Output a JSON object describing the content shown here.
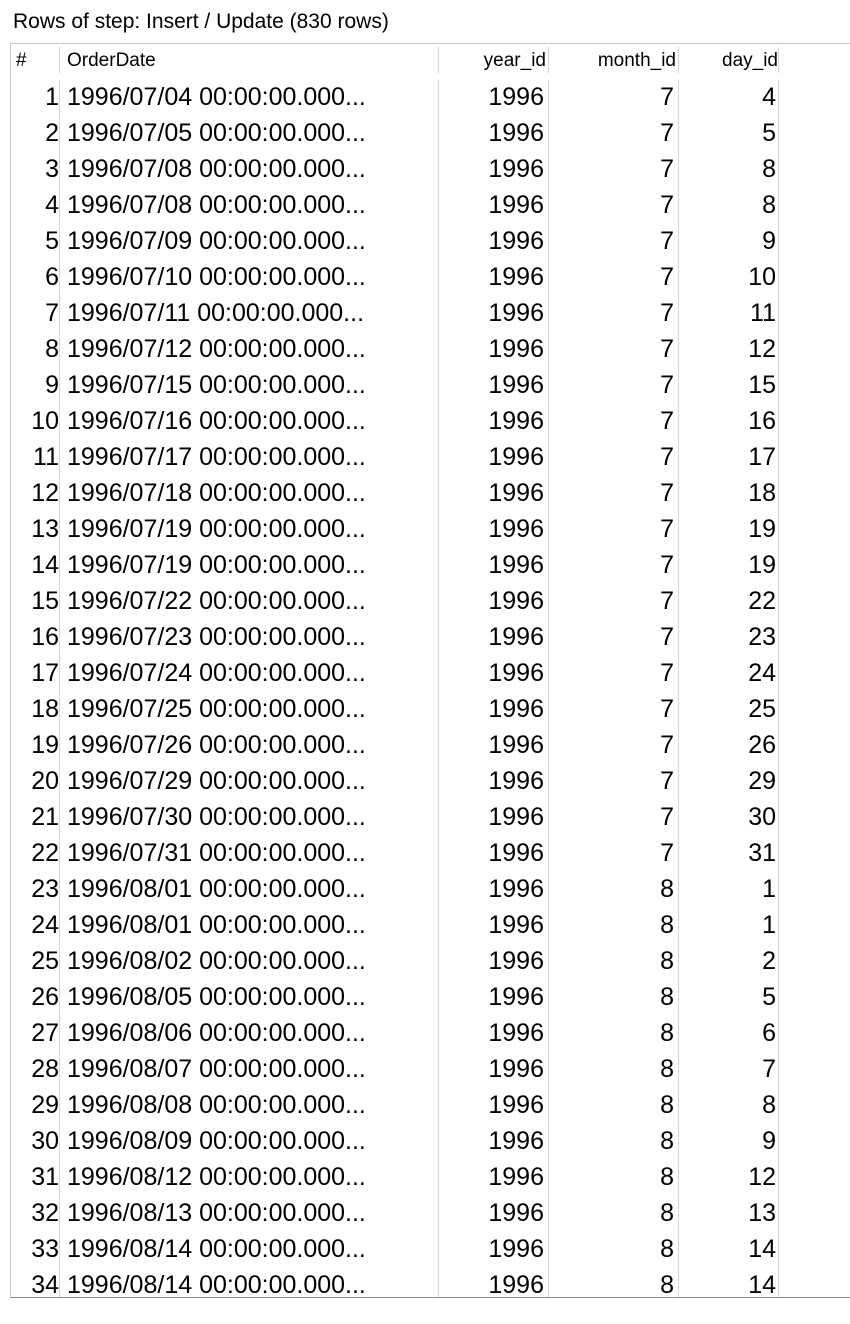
{
  "title": "Rows of step: Insert / Update (830 rows)",
  "columns": [
    "#",
    "OrderDate",
    "year_id",
    "month_id",
    "day_id"
  ],
  "rows": [
    {
      "n": "1",
      "date": "1996/07/04 00:00:00.000...",
      "year": "1996",
      "month": "7",
      "day": "4"
    },
    {
      "n": "2",
      "date": "1996/07/05 00:00:00.000...",
      "year": "1996",
      "month": "7",
      "day": "5"
    },
    {
      "n": "3",
      "date": "1996/07/08 00:00:00.000...",
      "year": "1996",
      "month": "7",
      "day": "8"
    },
    {
      "n": "4",
      "date": "1996/07/08 00:00:00.000...",
      "year": "1996",
      "month": "7",
      "day": "8"
    },
    {
      "n": "5",
      "date": "1996/07/09 00:00:00.000...",
      "year": "1996",
      "month": "7",
      "day": "9"
    },
    {
      "n": "6",
      "date": "1996/07/10 00:00:00.000...",
      "year": "1996",
      "month": "7",
      "day": "10"
    },
    {
      "n": "7",
      "date": "1996/07/11 00:00:00.000...",
      "year": "1996",
      "month": "7",
      "day": "11"
    },
    {
      "n": "8",
      "date": "1996/07/12 00:00:00.000...",
      "year": "1996",
      "month": "7",
      "day": "12"
    },
    {
      "n": "9",
      "date": "1996/07/15 00:00:00.000...",
      "year": "1996",
      "month": "7",
      "day": "15"
    },
    {
      "n": "10",
      "date": "1996/07/16 00:00:00.000...",
      "year": "1996",
      "month": "7",
      "day": "16"
    },
    {
      "n": "11",
      "date": "1996/07/17 00:00:00.000...",
      "year": "1996",
      "month": "7",
      "day": "17"
    },
    {
      "n": "12",
      "date": "1996/07/18 00:00:00.000...",
      "year": "1996",
      "month": "7",
      "day": "18"
    },
    {
      "n": "13",
      "date": "1996/07/19 00:00:00.000...",
      "year": "1996",
      "month": "7",
      "day": "19"
    },
    {
      "n": "14",
      "date": "1996/07/19 00:00:00.000...",
      "year": "1996",
      "month": "7",
      "day": "19"
    },
    {
      "n": "15",
      "date": "1996/07/22 00:00:00.000...",
      "year": "1996",
      "month": "7",
      "day": "22"
    },
    {
      "n": "16",
      "date": "1996/07/23 00:00:00.000...",
      "year": "1996",
      "month": "7",
      "day": "23"
    },
    {
      "n": "17",
      "date": "1996/07/24 00:00:00.000...",
      "year": "1996",
      "month": "7",
      "day": "24"
    },
    {
      "n": "18",
      "date": "1996/07/25 00:00:00.000...",
      "year": "1996",
      "month": "7",
      "day": "25"
    },
    {
      "n": "19",
      "date": "1996/07/26 00:00:00.000...",
      "year": "1996",
      "month": "7",
      "day": "26"
    },
    {
      "n": "20",
      "date": "1996/07/29 00:00:00.000...",
      "year": "1996",
      "month": "7",
      "day": "29"
    },
    {
      "n": "21",
      "date": "1996/07/30 00:00:00.000...",
      "year": "1996",
      "month": "7",
      "day": "30"
    },
    {
      "n": "22",
      "date": "1996/07/31 00:00:00.000...",
      "year": "1996",
      "month": "7",
      "day": "31"
    },
    {
      "n": "23",
      "date": "1996/08/01 00:00:00.000...",
      "year": "1996",
      "month": "8",
      "day": "1"
    },
    {
      "n": "24",
      "date": "1996/08/01 00:00:00.000...",
      "year": "1996",
      "month": "8",
      "day": "1"
    },
    {
      "n": "25",
      "date": "1996/08/02 00:00:00.000...",
      "year": "1996",
      "month": "8",
      "day": "2"
    },
    {
      "n": "26",
      "date": "1996/08/05 00:00:00.000...",
      "year": "1996",
      "month": "8",
      "day": "5"
    },
    {
      "n": "27",
      "date": "1996/08/06 00:00:00.000...",
      "year": "1996",
      "month": "8",
      "day": "6"
    },
    {
      "n": "28",
      "date": "1996/08/07 00:00:00.000...",
      "year": "1996",
      "month": "8",
      "day": "7"
    },
    {
      "n": "29",
      "date": "1996/08/08 00:00:00.000...",
      "year": "1996",
      "month": "8",
      "day": "8"
    },
    {
      "n": "30",
      "date": "1996/08/09 00:00:00.000...",
      "year": "1996",
      "month": "8",
      "day": "9"
    },
    {
      "n": "31",
      "date": "1996/08/12 00:00:00.000...",
      "year": "1996",
      "month": "8",
      "day": "12"
    },
    {
      "n": "32",
      "date": "1996/08/13 00:00:00.000...",
      "year": "1996",
      "month": "8",
      "day": "13"
    },
    {
      "n": "33",
      "date": "1996/08/14 00:00:00.000...",
      "year": "1996",
      "month": "8",
      "day": "14"
    },
    {
      "n": "34",
      "date": "1996/08/14 00:00:00.000...",
      "year": "1996",
      "month": "8",
      "day": "14"
    }
  ]
}
